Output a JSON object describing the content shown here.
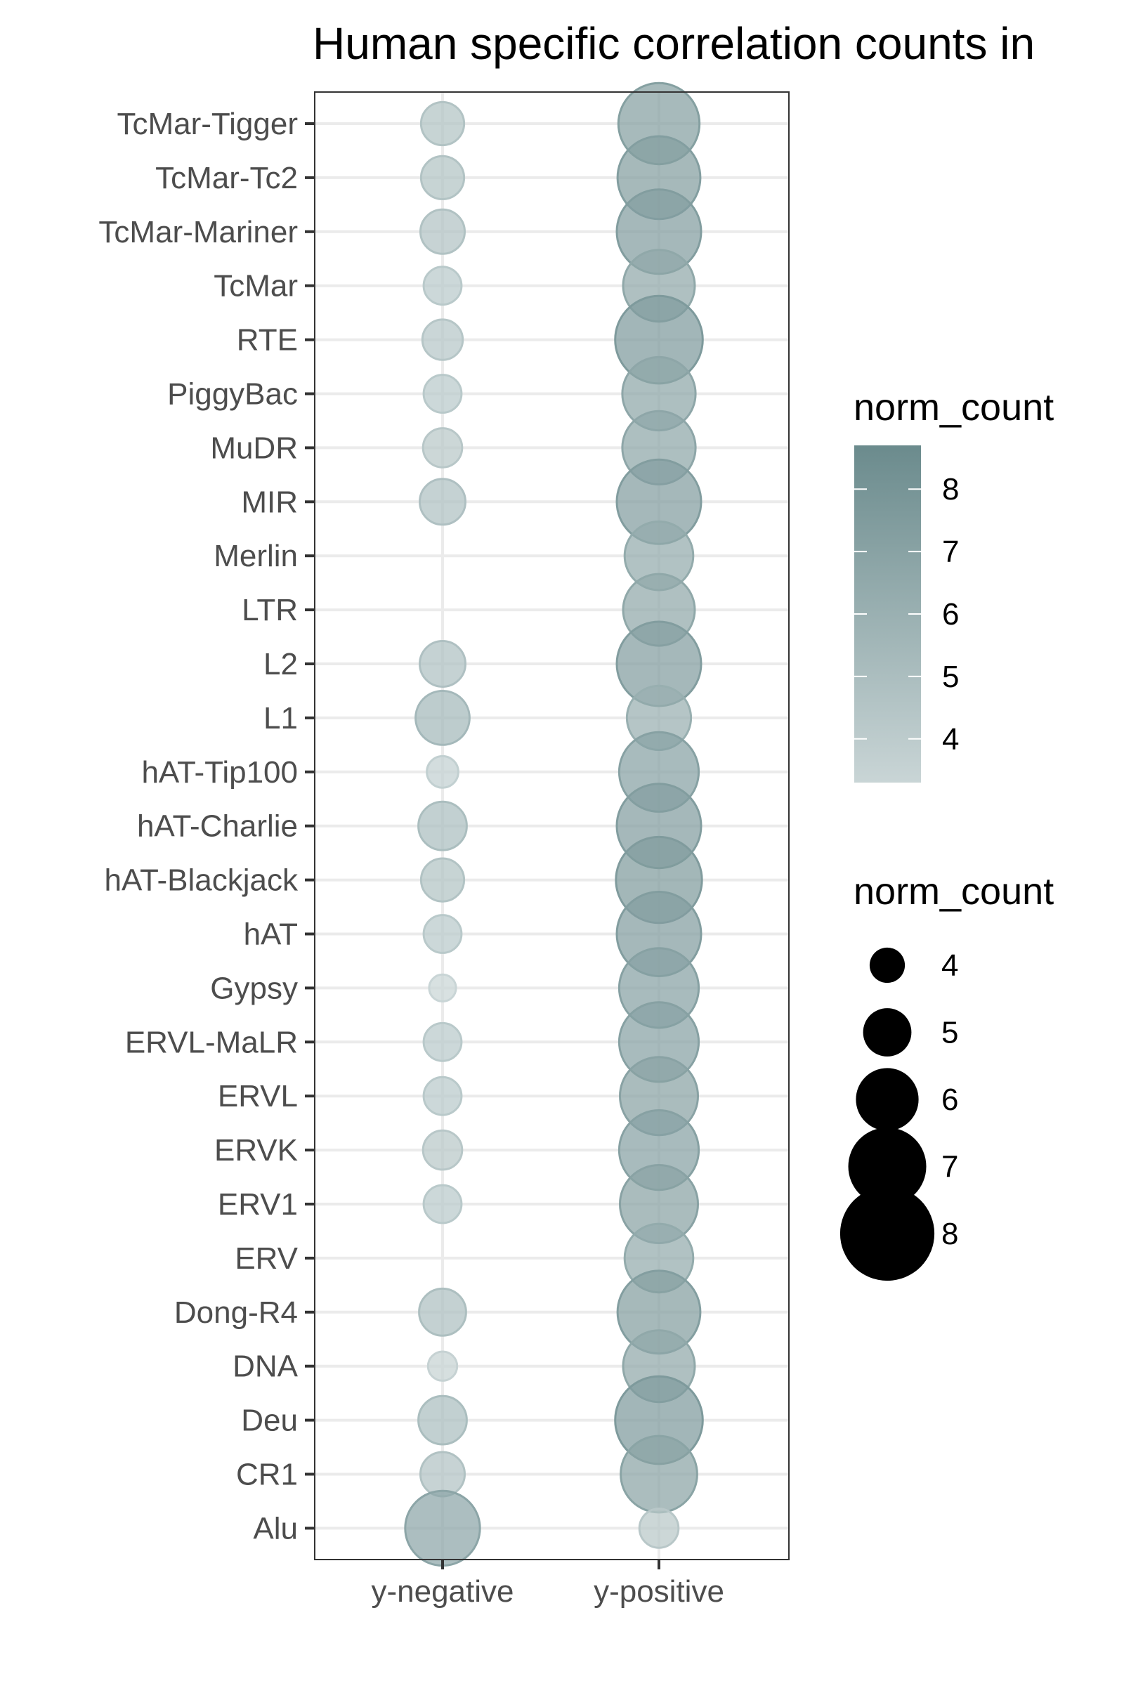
{
  "chart_data": {
    "type": "scatter",
    "title": "Human specific correlation counts in",
    "x_categories": [
      "y-negative",
      "y-positive"
    ],
    "y_categories": [
      "TcMar-Tigger",
      "TcMar-Tc2",
      "TcMar-Mariner",
      "TcMar",
      "RTE",
      "PiggyBac",
      "MuDR",
      "MIR",
      "Merlin",
      "LTR",
      "L2",
      "L1",
      "hAT-Tip100",
      "hAT-Charlie",
      "hAT-Blackjack",
      "hAT",
      "Gypsy",
      "ERVL-MaLR",
      "ERVL",
      "ERVK",
      "ERV1",
      "ERV",
      "Dong-R4",
      "DNA",
      "Deu",
      "CR1",
      "Alu"
    ],
    "series": [
      {
        "x": "y-negative",
        "values": [
          4.6,
          4.6,
          4.7,
          4.2,
          4.4,
          4.2,
          4.3,
          4.8,
          null,
          null,
          4.8,
          5.4,
          3.7,
          5.0,
          4.6,
          4.2,
          3.3,
          4.2,
          4.2,
          4.3,
          4.2,
          null,
          4.9,
          3.5,
          5.0,
          4.7,
          6.8
        ]
      },
      {
        "x": "y-positive",
        "values": [
          7.2,
          7.3,
          7.4,
          6.6,
          7.6,
          6.7,
          6.7,
          7.4,
          6.4,
          6.6,
          7.4,
          6.1,
          7.1,
          7.4,
          7.5,
          7.4,
          7.1,
          7.1,
          7.0,
          7.1,
          7.0,
          6.4,
          7.3,
          6.6,
          7.6,
          6.9,
          4.3
        ]
      }
    ],
    "legend_color": {
      "title": "norm_count",
      "range": [
        3.3,
        8.7
      ],
      "ticks": [
        4,
        5,
        6,
        7,
        8
      ],
      "color_low": "#c9d5d6",
      "color_high": "#6b8b8d"
    },
    "legend_size": {
      "title": "norm_count",
      "values": [
        4,
        5,
        6,
        7,
        8
      ]
    },
    "grid": true,
    "legend_position": "right"
  }
}
